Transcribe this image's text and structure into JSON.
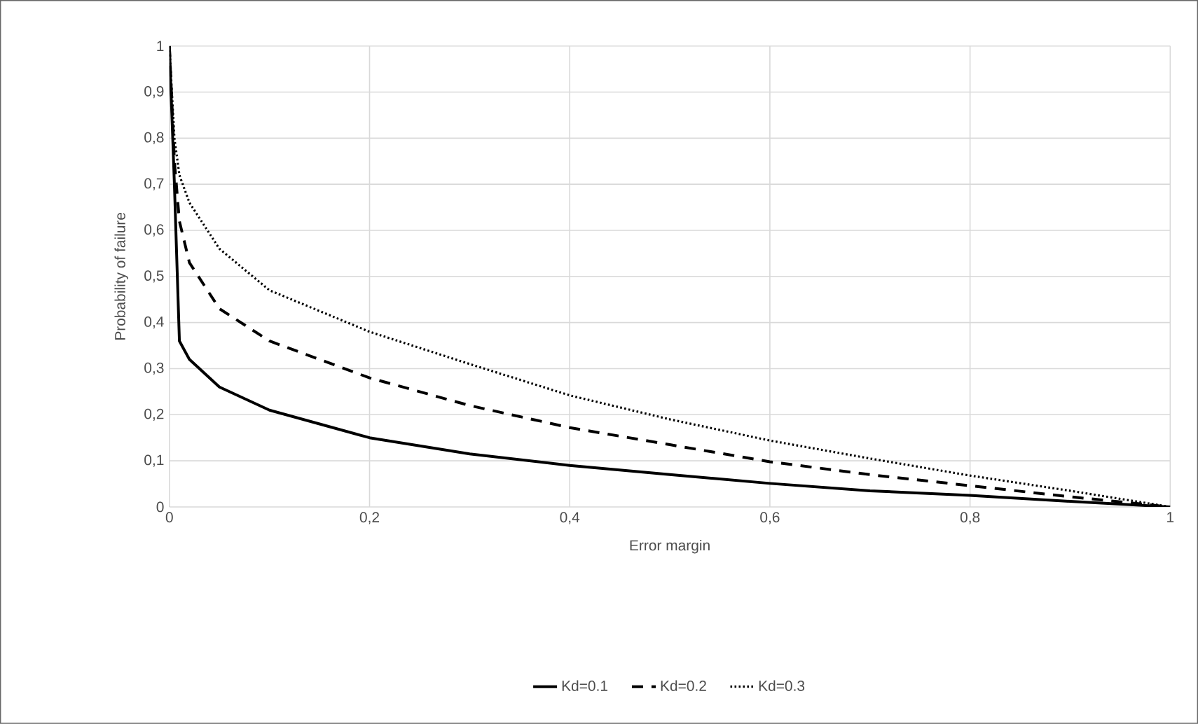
{
  "chart_data": {
    "type": "line",
    "xlabel": "Error margin",
    "ylabel": "Probability of failure",
    "xlim": [
      0,
      1
    ],
    "ylim": [
      0,
      1
    ],
    "xticks": [
      0,
      {
        "value": 0.2,
        "label": "0,2"
      },
      {
        "value": 0.4,
        "label": "0,4"
      },
      {
        "value": 0.6,
        "label": "0,6"
      },
      {
        "value": 0.8,
        "label": "0,8"
      },
      1
    ],
    "yticks": [
      0,
      {
        "value": 0.1,
        "label": "0,1"
      },
      {
        "value": 0.2,
        "label": "0,2"
      },
      {
        "value": 0.3,
        "label": "0,3"
      },
      {
        "value": 0.4,
        "label": "0,4"
      },
      {
        "value": 0.5,
        "label": "0,5"
      },
      {
        "value": 0.6,
        "label": "0,6"
      },
      {
        "value": 0.7,
        "label": "0,7"
      },
      {
        "value": 0.8,
        "label": "0,8"
      },
      {
        "value": 0.9,
        "label": "0,9"
      },
      1
    ],
    "grid": true,
    "legend": "bottom",
    "marker": "none",
    "series": [
      {
        "name": "Kd=0.1",
        "color": "#000000",
        "line_style": "solid",
        "x": [
          0,
          0.005,
          0.01,
          0.02,
          0.05,
          0.1,
          0.2,
          0.3,
          0.4,
          0.5,
          0.6,
          0.7,
          0.8,
          0.9,
          1
        ],
        "values": [
          1,
          0.7,
          0.36,
          0.32,
          0.26,
          0.21,
          0.15,
          0.115,
          0.09,
          0.07,
          0.051,
          0.035,
          0.025,
          0.012,
          0
        ]
      },
      {
        "name": "Kd=0.2",
        "color": "#000000",
        "line_style": "dashed",
        "x": [
          0,
          0.005,
          0.01,
          0.02,
          0.05,
          0.1,
          0.2,
          0.3,
          0.4,
          0.5,
          0.6,
          0.7,
          0.8,
          0.9,
          1
        ],
        "values": [
          1,
          0.75,
          0.62,
          0.53,
          0.43,
          0.36,
          0.28,
          0.22,
          0.172,
          0.135,
          0.098,
          0.07,
          0.046,
          0.022,
          0
        ]
      },
      {
        "name": "Kd=0.3",
        "color": "#000000",
        "line_style": "dotted",
        "x": [
          0,
          0.005,
          0.01,
          0.02,
          0.05,
          0.1,
          0.2,
          0.3,
          0.4,
          0.5,
          0.6,
          0.7,
          0.8,
          0.9,
          1
        ],
        "values": [
          1,
          0.8,
          0.72,
          0.66,
          0.56,
          0.47,
          0.38,
          0.31,
          0.242,
          0.19,
          0.144,
          0.105,
          0.068,
          0.035,
          0
        ]
      }
    ]
  }
}
